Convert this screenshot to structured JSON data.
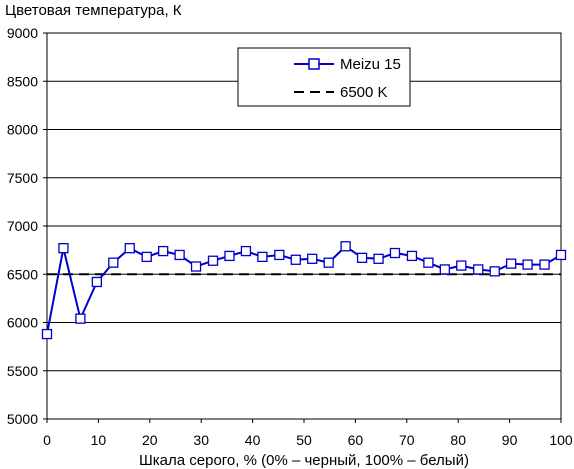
{
  "chart_data": {
    "type": "line",
    "ylabel": "Цветовая температура, К",
    "xlabel": "Шкала серого, % (0% – черный, 100% – белый)",
    "xlim": [
      0,
      100
    ],
    "ylim": [
      5000,
      9000
    ],
    "xticks": [
      "0",
      "10",
      "20",
      "30",
      "40",
      "50",
      "60",
      "70",
      "80",
      "90",
      "100"
    ],
    "yticks": [
      "5000",
      "5500",
      "6000",
      "6500",
      "7000",
      "7500",
      "8000",
      "8500",
      "9000"
    ],
    "grid": "horizontal",
    "legend_position": "top-right",
    "series": [
      {
        "name": "Meizu 15",
        "color": "#0000cc",
        "marker": "open-square",
        "x": [
          0,
          3.2,
          6.5,
          9.7,
          12.9,
          16.1,
          19.4,
          22.6,
          25.8,
          29,
          32.3,
          35.5,
          38.7,
          41.9,
          45.2,
          48.4,
          51.6,
          54.8,
          58.1,
          61.3,
          64.5,
          67.7,
          71,
          74.2,
          77.4,
          80.6,
          83.9,
          87.1,
          90.3,
          93.5,
          96.8,
          100
        ],
        "y": [
          5880,
          6770,
          6040,
          6420,
          6620,
          6770,
          6680,
          6740,
          6700,
          6580,
          6640,
          6690,
          6740,
          6680,
          6700,
          6650,
          6660,
          6620,
          6790,
          6670,
          6660,
          6720,
          6690,
          6620,
          6550,
          6590,
          6550,
          6530,
          6610,
          6600,
          6600,
          6700
        ]
      },
      {
        "name": "6500 K",
        "color": "#000000",
        "style": "dashed",
        "y_constant": 6500
      }
    ]
  }
}
